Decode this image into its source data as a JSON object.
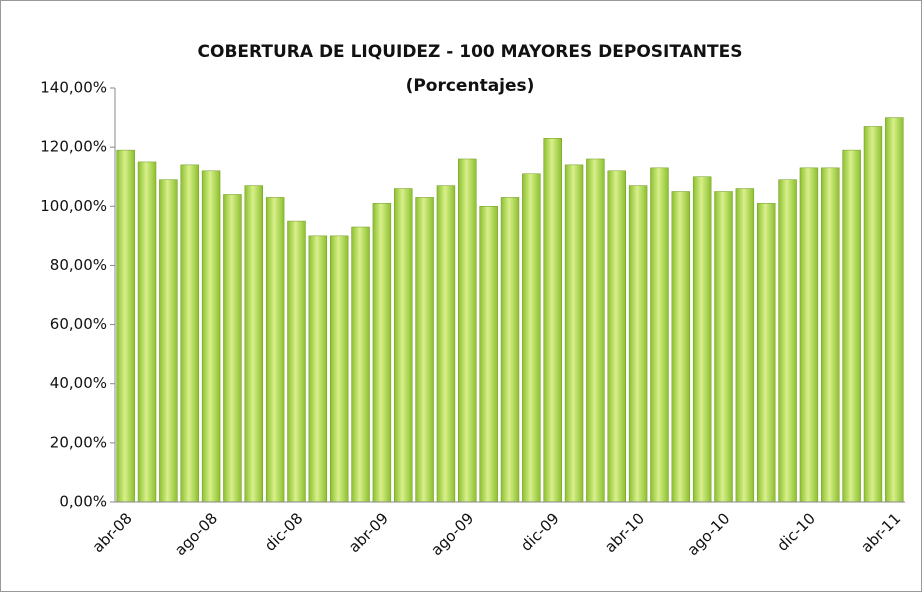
{
  "chart_data": {
    "type": "bar",
    "title": "COBERTURA DE LIQUIDEZ  - 100 MAYORES DEPOSITANTES",
    "subtitle": "(Porcentajes)",
    "categories": [
      "abr-08",
      null,
      null,
      null,
      "ago-08",
      null,
      null,
      null,
      "dic-08",
      null,
      null,
      null,
      "abr-09",
      null,
      null,
      null,
      "ago-09",
      null,
      null,
      null,
      "dic-09",
      null,
      null,
      null,
      "abr-10",
      null,
      null,
      null,
      "ago-10",
      null,
      null,
      null,
      "dic-10",
      null,
      null,
      null,
      "abr-11"
    ],
    "values": [
      119,
      115,
      109,
      114,
      112,
      104,
      107,
      103,
      95,
      90,
      90,
      93,
      101,
      106,
      103,
      107,
      116,
      100,
      103,
      111,
      123,
      114,
      116,
      112,
      107,
      113,
      105,
      110,
      105,
      106,
      101,
      109,
      113,
      113,
      119,
      127,
      130
    ],
    "color": "#8cbf2f",
    "ylim": [
      0,
      140
    ],
    "yticks": [
      {
        "value": 0,
        "label": "0,00%"
      },
      {
        "value": 20,
        "label": "20,00%"
      },
      {
        "value": 40,
        "label": "40,00%"
      },
      {
        "value": 60,
        "label": "60,00%"
      },
      {
        "value": 80,
        "label": "80,00%"
      },
      {
        "value": 100,
        "label": "100,00%"
      },
      {
        "value": 120,
        "label": "120,00%"
      },
      {
        "value": 140,
        "label": "140,00%"
      }
    ],
    "grid": false
  }
}
